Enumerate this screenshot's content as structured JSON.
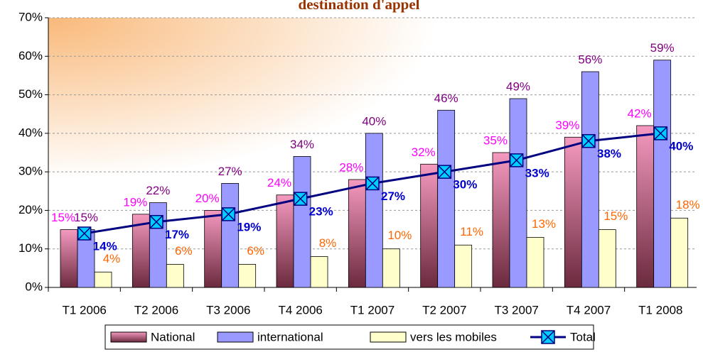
{
  "chart_data": {
    "type": "bar-line",
    "title": "destination d'appel",
    "categories": [
      "T1 2006",
      "T2 2006",
      "T3 2006",
      "T4 2006",
      "T1 2007",
      "T2 2007",
      "T3 2007",
      "T4 2007",
      "T1 2008"
    ],
    "series": [
      {
        "name": "National",
        "type": "bar",
        "color": "#e27aa6",
        "label_color": "#ff00ff",
        "values": [
          15,
          19,
          20,
          24,
          28,
          32,
          35,
          39,
          42
        ],
        "value_labels": [
          "15%",
          "19%",
          "20%",
          "24%",
          "28%",
          "32%",
          "35%",
          "39%",
          "42%"
        ]
      },
      {
        "name": "international",
        "type": "bar",
        "color": "#9999ff",
        "label_color": "#800080",
        "values": [
          15,
          22,
          27,
          34,
          40,
          46,
          49,
          56,
          59
        ],
        "value_labels": [
          "15%",
          "22%",
          "27%",
          "34%",
          "40%",
          "46%",
          "49%",
          "56%",
          "59%"
        ]
      },
      {
        "name": "vers les mobiles",
        "type": "bar",
        "color": "#ffffcc",
        "label_color": "#ff6600",
        "values": [
          4,
          6,
          6,
          8,
          10,
          11,
          13,
          15,
          18
        ],
        "value_labels": [
          "4%",
          "6%",
          "6%",
          "8%",
          "10%",
          "11%",
          "13%",
          "15%",
          "18%"
        ]
      },
      {
        "name": "Total",
        "type": "line",
        "color": "#000080",
        "marker_color": "#00ccff",
        "label_color": "#0000cc",
        "values": [
          14,
          17,
          19,
          23,
          27,
          30,
          33,
          38,
          40
        ],
        "value_labels": [
          "14%",
          "17%",
          "19%",
          "23%",
          "27%",
          "30%",
          "33%",
          "38%",
          "40%"
        ]
      }
    ],
    "ylim": [
      0,
      70
    ],
    "yticks": [
      {
        "value": 0,
        "label": "0%"
      },
      {
        "value": 10,
        "label": "10%"
      },
      {
        "value": 20,
        "label": "20%"
      },
      {
        "value": 30,
        "label": "30%"
      },
      {
        "value": 40,
        "label": "40%"
      },
      {
        "value": 50,
        "label": "50%"
      },
      {
        "value": 60,
        "label": "60%"
      },
      {
        "value": 70,
        "label": "70%"
      }
    ],
    "grid": true,
    "legend": "bottom"
  }
}
